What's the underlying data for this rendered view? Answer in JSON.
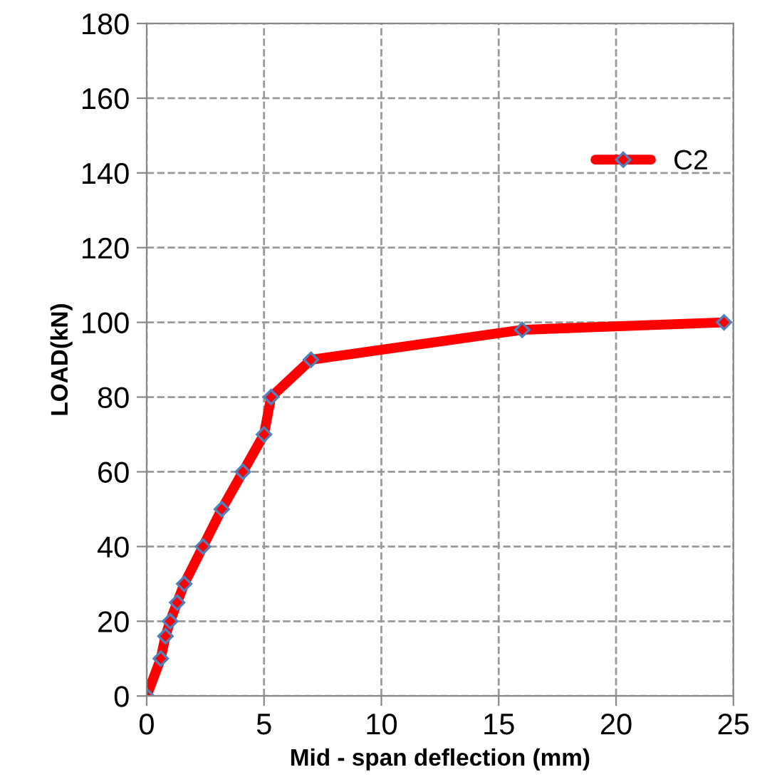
{
  "chart_data": {
    "type": "line",
    "xlabel": "Mid - span deflection (mm)",
    "ylabel": "LOAD(kN)",
    "x": [
      0,
      0.6,
      0.8,
      1.0,
      1.3,
      1.6,
      2.4,
      3.2,
      4.1,
      5.0,
      5.3,
      7.0,
      16.0,
      24.6
    ],
    "series": [
      {
        "name": "C2",
        "color": "#ff0000",
        "values": [
          0,
          10,
          16,
          20,
          25,
          30,
          40,
          50,
          60,
          70,
          80,
          90,
          98,
          100
        ]
      }
    ],
    "xlim": [
      0,
      25
    ],
    "xticks": [
      0,
      5,
      10,
      15,
      20,
      25
    ],
    "ylim": [
      0,
      180
    ],
    "yticks": [
      0,
      20,
      40,
      60,
      80,
      100,
      120,
      140,
      160,
      180
    ],
    "grid": true,
    "legend": "top right",
    "marker": "diamond",
    "line_style": "solid"
  }
}
